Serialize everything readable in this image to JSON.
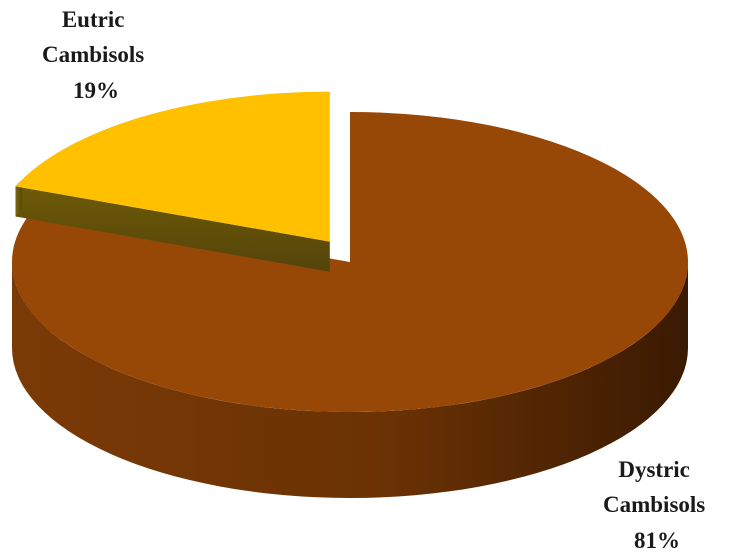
{
  "chart_data": {
    "type": "pie",
    "style": "3d-exploded",
    "title": "",
    "slices": [
      {
        "name_lines": [
          "Dystric",
          "Cambisols"
        ],
        "value": 81,
        "value_label": "81%",
        "color": "#974706"
      },
      {
        "name_lines": [
          "Eutric",
          "Cambisols"
        ],
        "value": 19,
        "value_label": "19%",
        "color": "#ffc000"
      }
    ],
    "legend": "none",
    "grid": false
  }
}
